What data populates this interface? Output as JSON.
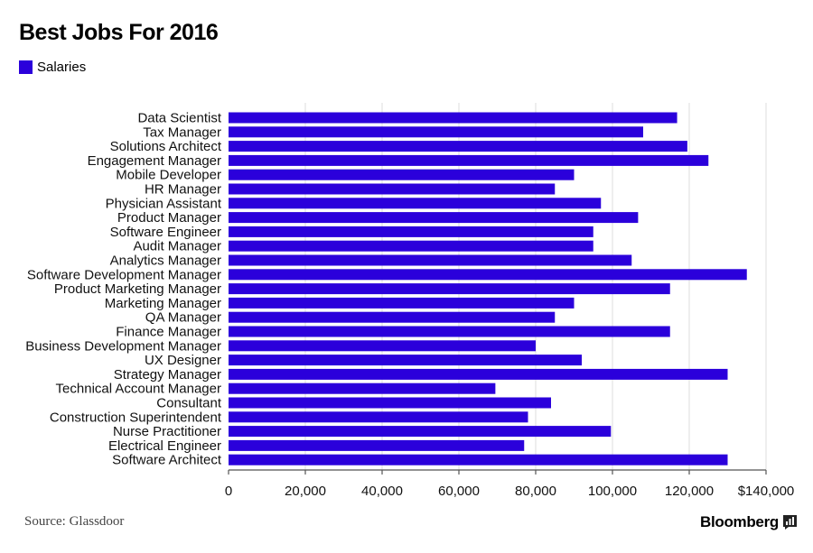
{
  "colors": {
    "bar": "#2b00db",
    "grid": "#dddddd",
    "axis": "#555555"
  },
  "header": {
    "title": "Best Jobs For 2016"
  },
  "footer": {
    "source": "Source: Glassdoor",
    "brand": "Bloomberg",
    "brand_icon": "bar-chart-icon"
  },
  "chart_data": {
    "type": "bar",
    "orientation": "horizontal",
    "title": "Best Jobs For 2016",
    "legend": {
      "position": "top-left",
      "entries": [
        "Salaries"
      ]
    },
    "series": [
      {
        "name": "Salaries"
      }
    ],
    "categories": [
      "Data Scientist",
      "Tax Manager",
      "Solutions Architect",
      "Engagement Manager",
      "Mobile Developer",
      "HR Manager",
      "Physician Assistant",
      "Product Manager",
      "Software Engineer",
      "Audit Manager",
      "Analytics Manager",
      "Software Development Manager",
      "Product Marketing Manager",
      "Marketing Manager",
      "QA Manager",
      "Finance Manager",
      "Business Development Manager",
      "UX Designer",
      "Strategy Manager",
      "Technical Account Manager",
      "Consultant",
      "Construction Superintendent",
      "Nurse Practitioner",
      "Electrical Engineer",
      "Software Architect"
    ],
    "values": [
      116840,
      108000,
      119500,
      125000,
      90000,
      85000,
      97000,
      106680,
      95000,
      95000,
      105000,
      135000,
      115000,
      90000,
      85000,
      115000,
      80000,
      92000,
      130000,
      69500,
      84000,
      78000,
      99600,
      77000,
      130000
    ],
    "xlim": [
      0,
      140000
    ],
    "xticks": [
      0,
      20000,
      40000,
      60000,
      80000,
      100000,
      120000,
      140000
    ],
    "xtick_labels": [
      "0",
      "20,000",
      "40,000",
      "60,000",
      "80,000",
      "100,000",
      "120,000",
      "$140,000"
    ],
    "grid": "vertical"
  }
}
